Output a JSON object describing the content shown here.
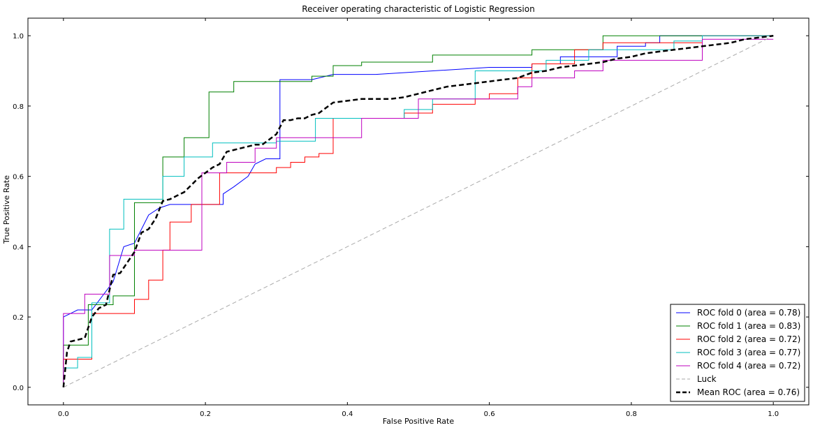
{
  "chart_data": {
    "type": "line",
    "title": "Receiver operating characteristic of Logistic Regression",
    "xlabel": "False Positive Rate",
    "ylabel": "True Positive Rate",
    "xlim": [
      -0.05,
      1.05
    ],
    "ylim": [
      -0.05,
      1.05
    ],
    "xticks": [
      0.0,
      0.2,
      0.4,
      0.6,
      0.8,
      1.0
    ],
    "yticks": [
      0.0,
      0.2,
      0.4,
      0.6,
      0.8,
      1.0
    ],
    "tick_labels": [
      "0.0",
      "0.2",
      "0.4",
      "0.6",
      "0.8",
      "1.0"
    ],
    "grid": false,
    "legend_position": "lower-right",
    "series": [
      {
        "name": "ROC fold 0 (area = 0.78)",
        "color": "#0000ff",
        "style": "solid",
        "x": [
          0.0,
          0.0,
          0.01,
          0.01,
          0.02,
          0.02,
          0.04,
          0.04,
          0.07,
          0.07,
          0.085,
          0.085,
          0.1,
          0.1,
          0.12,
          0.12,
          0.135,
          0.135,
          0.15,
          0.15,
          0.225,
          0.225,
          0.24,
          0.24,
          0.26,
          0.26,
          0.27,
          0.27,
          0.285,
          0.285,
          0.305,
          0.305,
          0.35,
          0.38,
          0.44,
          0.6,
          0.64,
          0.66,
          0.66,
          0.7,
          0.7,
          0.78,
          0.78,
          0.82,
          0.82,
          0.84,
          0.84,
          1.0
        ],
        "y": [
          0.0,
          0.2,
          0.21,
          0.21,
          0.22,
          0.22,
          0.22,
          0.22,
          0.3,
          0.3,
          0.4,
          0.4,
          0.41,
          0.41,
          0.49,
          0.49,
          0.51,
          0.51,
          0.52,
          0.52,
          0.52,
          0.55,
          0.57,
          0.57,
          0.6,
          0.6,
          0.635,
          0.635,
          0.65,
          0.65,
          0.65,
          0.875,
          0.875,
          0.89,
          0.89,
          0.91,
          0.91,
          0.91,
          0.92,
          0.92,
          0.94,
          0.94,
          0.97,
          0.97,
          0.98,
          0.98,
          1.0,
          1.0
        ]
      },
      {
        "name": "ROC fold 1 (area = 0.83)",
        "color": "#008000",
        "style": "solid",
        "x": [
          0.0,
          0.0,
          0.035,
          0.035,
          0.07,
          0.07,
          0.1,
          0.1,
          0.14,
          0.14,
          0.17,
          0.17,
          0.205,
          0.205,
          0.24,
          0.24,
          0.35,
          0.35,
          0.38,
          0.38,
          0.42,
          0.42,
          0.52,
          0.52,
          0.66,
          0.66,
          0.76,
          0.76,
          1.0
        ],
        "y": [
          0.0,
          0.12,
          0.12,
          0.235,
          0.235,
          0.26,
          0.26,
          0.525,
          0.525,
          0.655,
          0.655,
          0.71,
          0.71,
          0.84,
          0.84,
          0.87,
          0.87,
          0.885,
          0.885,
          0.915,
          0.915,
          0.925,
          0.925,
          0.945,
          0.945,
          0.96,
          0.96,
          1.0,
          1.0
        ]
      },
      {
        "name": "ROC fold 2 (area = 0.72)",
        "color": "#ff0000",
        "style": "solid",
        "x": [
          0.0,
          0.0,
          0.04,
          0.04,
          0.1,
          0.1,
          0.12,
          0.12,
          0.14,
          0.14,
          0.15,
          0.15,
          0.18,
          0.18,
          0.22,
          0.22,
          0.3,
          0.3,
          0.32,
          0.32,
          0.34,
          0.34,
          0.36,
          0.36,
          0.38,
          0.38,
          0.48,
          0.48,
          0.52,
          0.52,
          0.58,
          0.58,
          0.6,
          0.6,
          0.64,
          0.64,
          0.66,
          0.66,
          0.72,
          0.72,
          0.76,
          0.76,
          0.9,
          0.9,
          1.0
        ],
        "y": [
          0.0,
          0.08,
          0.08,
          0.21,
          0.21,
          0.25,
          0.25,
          0.305,
          0.305,
          0.39,
          0.39,
          0.47,
          0.47,
          0.52,
          0.52,
          0.61,
          0.61,
          0.625,
          0.625,
          0.64,
          0.64,
          0.655,
          0.655,
          0.665,
          0.665,
          0.765,
          0.765,
          0.78,
          0.78,
          0.805,
          0.805,
          0.82,
          0.82,
          0.835,
          0.835,
          0.88,
          0.88,
          0.92,
          0.92,
          0.96,
          0.96,
          0.98,
          0.98,
          1.0,
          1.0
        ]
      },
      {
        "name": "ROC fold 3 (area = 0.77)",
        "color": "#00bfbf",
        "style": "solid",
        "x": [
          0.0,
          0.0,
          0.02,
          0.02,
          0.04,
          0.04,
          0.065,
          0.065,
          0.085,
          0.085,
          0.14,
          0.14,
          0.17,
          0.17,
          0.21,
          0.21,
          0.3,
          0.3,
          0.355,
          0.355,
          0.48,
          0.48,
          0.52,
          0.52,
          0.58,
          0.58,
          0.68,
          0.68,
          0.74,
          0.74,
          0.86,
          0.86,
          0.9,
          0.9,
          1.0
        ],
        "y": [
          0.0,
          0.055,
          0.055,
          0.085,
          0.085,
          0.24,
          0.24,
          0.45,
          0.45,
          0.535,
          0.535,
          0.6,
          0.6,
          0.655,
          0.655,
          0.695,
          0.695,
          0.7,
          0.7,
          0.765,
          0.765,
          0.79,
          0.79,
          0.82,
          0.82,
          0.9,
          0.9,
          0.93,
          0.93,
          0.96,
          0.96,
          0.985,
          0.985,
          1.0,
          1.0
        ]
      },
      {
        "name": "ROC fold 4 (area = 0.72)",
        "color": "#bf00bf",
        "style": "solid",
        "x": [
          0.0,
          0.0,
          0.03,
          0.03,
          0.065,
          0.065,
          0.1,
          0.1,
          0.195,
          0.195,
          0.23,
          0.23,
          0.27,
          0.27,
          0.3,
          0.3,
          0.33,
          0.33,
          0.42,
          0.42,
          0.5,
          0.5,
          0.64,
          0.64,
          0.66,
          0.66,
          0.68,
          0.68,
          0.72,
          0.72,
          0.76,
          0.76,
          0.82,
          0.82,
          0.9,
          0.9,
          1.0
        ],
        "y": [
          0.0,
          0.21,
          0.21,
          0.265,
          0.265,
          0.375,
          0.375,
          0.39,
          0.39,
          0.61,
          0.61,
          0.64,
          0.64,
          0.68,
          0.68,
          0.71,
          0.71,
          0.71,
          0.71,
          0.765,
          0.765,
          0.82,
          0.82,
          0.855,
          0.855,
          0.88,
          0.88,
          0.88,
          0.88,
          0.9,
          0.9,
          0.93,
          0.93,
          0.93,
          0.93,
          0.99,
          0.99
        ]
      },
      {
        "name": "Luck",
        "color": "#aaaaaa",
        "style": "dashed",
        "x": [
          0.0,
          1.0
        ],
        "y": [
          0.0,
          1.0
        ]
      },
      {
        "name": "Mean ROC (area = 0.76)",
        "color": "#000000",
        "style": "dashed-bold",
        "x": [
          0.0,
          0.005,
          0.01,
          0.02,
          0.03,
          0.04,
          0.05,
          0.06,
          0.07,
          0.08,
          0.09,
          0.1,
          0.11,
          0.12,
          0.13,
          0.14,
          0.15,
          0.16,
          0.17,
          0.18,
          0.19,
          0.2,
          0.21,
          0.22,
          0.23,
          0.24,
          0.25,
          0.26,
          0.27,
          0.28,
          0.29,
          0.3,
          0.31,
          0.32,
          0.33,
          0.34,
          0.35,
          0.36,
          0.37,
          0.38,
          0.4,
          0.42,
          0.44,
          0.46,
          0.48,
          0.5,
          0.52,
          0.54,
          0.56,
          0.58,
          0.6,
          0.62,
          0.64,
          0.66,
          0.68,
          0.7,
          0.72,
          0.74,
          0.76,
          0.78,
          0.8,
          0.82,
          0.84,
          0.86,
          0.88,
          0.9,
          0.92,
          0.94,
          0.96,
          0.98,
          1.0
        ],
        "y": [
          0.0,
          0.1,
          0.13,
          0.135,
          0.14,
          0.2,
          0.225,
          0.235,
          0.32,
          0.325,
          0.355,
          0.385,
          0.44,
          0.45,
          0.48,
          0.53,
          0.535,
          0.545,
          0.555,
          0.575,
          0.595,
          0.61,
          0.625,
          0.635,
          0.67,
          0.675,
          0.68,
          0.685,
          0.69,
          0.69,
          0.705,
          0.72,
          0.76,
          0.76,
          0.765,
          0.765,
          0.775,
          0.78,
          0.795,
          0.81,
          0.815,
          0.82,
          0.82,
          0.82,
          0.825,
          0.835,
          0.845,
          0.855,
          0.86,
          0.865,
          0.87,
          0.875,
          0.88,
          0.895,
          0.9,
          0.91,
          0.915,
          0.92,
          0.925,
          0.935,
          0.94,
          0.95,
          0.955,
          0.96,
          0.965,
          0.97,
          0.975,
          0.98,
          0.99,
          0.995,
          1.0
        ]
      }
    ]
  }
}
